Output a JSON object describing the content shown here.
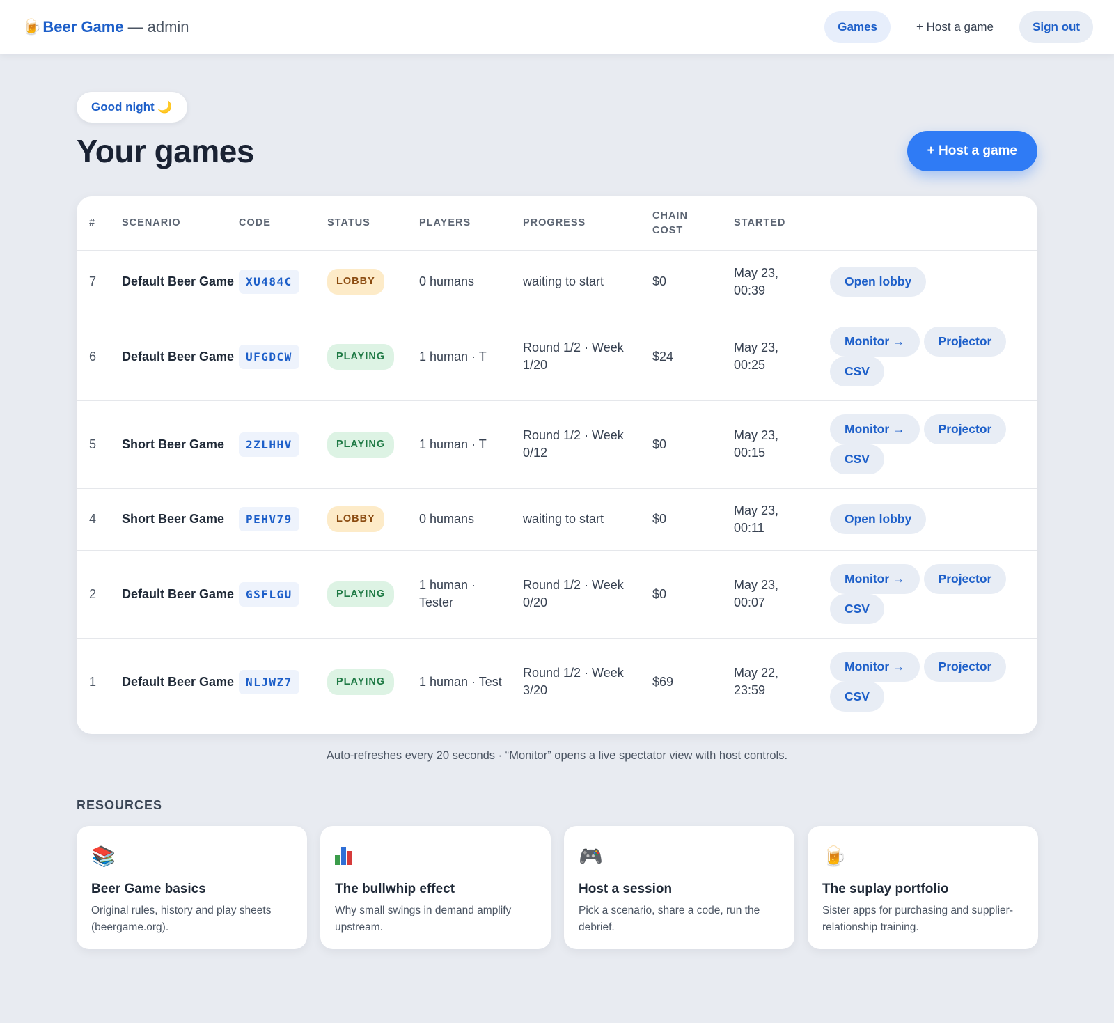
{
  "nav": {
    "brand_icon": "beer-mug-icon",
    "brand_name": "Beer Game",
    "brand_sep": "—",
    "brand_role": "admin",
    "games_label": "Games",
    "host_label": "+ Host a game",
    "signout_label": "Sign out"
  },
  "header": {
    "greeting": "Good night 🌙",
    "title": "Your games",
    "host_button": "+ Host a game"
  },
  "table": {
    "columns": [
      "#",
      "SCENARIO",
      "CODE",
      "STATUS",
      "PLAYERS",
      "PROGRESS",
      "CHAIN COST",
      "STARTED",
      ""
    ],
    "rows": [
      {
        "num": "7",
        "scenario": "Default Beer Game",
        "code": "XU484C",
        "status": "LOBBY",
        "players": "0 humans",
        "progress": "waiting to start",
        "cost": "$0",
        "started": "May 23, 00:39",
        "actions": [
          "Open lobby"
        ]
      },
      {
        "num": "6",
        "scenario": "Default Beer Game",
        "code": "UFGDCW",
        "status": "PLAYING",
        "players": "1 human · T",
        "progress": "Round 1/2 · Week 1/20",
        "cost": "$24",
        "started": "May 23, 00:25",
        "actions": [
          "Monitor →",
          "Projector",
          "CSV"
        ]
      },
      {
        "num": "5",
        "scenario": "Short Beer Game",
        "code": "2ZLHHV",
        "status": "PLAYING",
        "players": "1 human · T",
        "progress": "Round 1/2 · Week 0/12",
        "cost": "$0",
        "started": "May 23, 00:15",
        "actions": [
          "Monitor →",
          "Projector",
          "CSV"
        ]
      },
      {
        "num": "4",
        "scenario": "Short Beer Game",
        "code": "PEHV79",
        "status": "LOBBY",
        "players": "0 humans",
        "progress": "waiting to start",
        "cost": "$0",
        "started": "May 23, 00:11",
        "actions": [
          "Open lobby"
        ]
      },
      {
        "num": "2",
        "scenario": "Default Beer Game",
        "code": "GSFLGU",
        "status": "PLAYING",
        "players": "1 human · Tester",
        "progress": "Round 1/2 · Week 0/20",
        "cost": "$0",
        "started": "May 23, 00:07",
        "actions": [
          "Monitor →",
          "Projector",
          "CSV"
        ]
      },
      {
        "num": "1",
        "scenario": "Default Beer Game",
        "code": "NLJWZ7",
        "status": "PLAYING",
        "players": "1 human · Test",
        "progress": "Round 1/2 · Week 3/20",
        "cost": "$69",
        "started": "May 22, 23:59",
        "actions": [
          "Monitor →",
          "Projector",
          "CSV"
        ]
      }
    ]
  },
  "footnote": "Auto-refreshes every 20 seconds · “Monitor” opens a live spectator view with host controls.",
  "resources": {
    "heading": "RESOURCES",
    "cards": [
      {
        "icon": "books-icon",
        "title": "Beer Game basics",
        "desc": "Original rules, history and play sheets (beergame.org)."
      },
      {
        "icon": "bar-chart-icon",
        "title": "The bullwhip effect",
        "desc": "Why small swings in demand amplify upstream."
      },
      {
        "icon": "gamepad-icon",
        "title": "Host a session",
        "desc": "Pick a scenario, share a code, run the debrief."
      },
      {
        "icon": "beer-mug-icon",
        "title": "The suplay portfolio",
        "desc": "Sister apps for purchasing and supplier-relationship training."
      }
    ]
  },
  "colors": {
    "accent": "#2f7bf5",
    "link": "#1d5fc9",
    "background": "#e8ebf1",
    "lobby_bg": "#fdebc8",
    "playing_bg": "#ddf3e4"
  }
}
